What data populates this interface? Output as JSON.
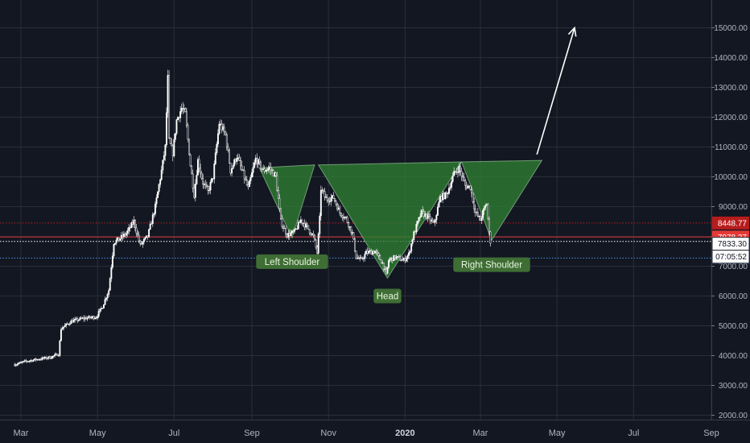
{
  "chart_data": {
    "type": "candlestick",
    "x_ticks": [
      "Mar",
      "May",
      "Jul",
      "Sep",
      "Nov",
      "2020",
      "Mar",
      "May",
      "Jul",
      "Sep"
    ],
    "y_ticks": [
      "2000.00",
      "3000.00",
      "4000.00",
      "5000.00",
      "6000.00",
      "7000.00",
      "8000.00",
      "9000.00",
      "10000.00",
      "11000.00",
      "12000.00",
      "13000.00",
      "14000.00",
      "15000.00"
    ],
    "ylim": [
      1800,
      16200
    ],
    "grid": true,
    "price_series": [
      [
        "2019-02-24",
        3700
      ],
      [
        "2019-03-05",
        3810
      ],
      [
        "2019-03-15",
        3880
      ],
      [
        "2019-03-25",
        3950
      ],
      [
        "2019-03-31",
        4050
      ],
      [
        "2019-04-02",
        4900
      ],
      [
        "2019-04-10",
        5150
      ],
      [
        "2019-04-20",
        5250
      ],
      [
        "2019-04-30",
        5300
      ],
      [
        "2019-05-05",
        5650
      ],
      [
        "2019-05-10",
        6200
      ],
      [
        "2019-05-14",
        7800
      ],
      [
        "2019-05-18",
        7900
      ],
      [
        "2019-05-24",
        8100
      ],
      [
        "2019-05-30",
        8500
      ],
      [
        "2019-06-04",
        7700
      ],
      [
        "2019-06-10",
        8000
      ],
      [
        "2019-06-16",
        9000
      ],
      [
        "2019-06-21",
        10200
      ],
      [
        "2019-06-24",
        11000
      ],
      [
        "2019-06-26",
        13300
      ],
      [
        "2019-06-27",
        11200
      ],
      [
        "2019-06-30",
        10800
      ],
      [
        "2019-07-03",
        11900
      ],
      [
        "2019-07-07",
        12300
      ],
      [
        "2019-07-10",
        12100
      ],
      [
        "2019-07-14",
        10400
      ],
      [
        "2019-07-17",
        9400
      ],
      [
        "2019-07-20",
        10550
      ],
      [
        "2019-07-24",
        9800
      ],
      [
        "2019-07-28",
        9500
      ],
      [
        "2019-08-01",
        10000
      ],
      [
        "2019-08-06",
        11800
      ],
      [
        "2019-08-11",
        11400
      ],
      [
        "2019-08-15",
        10200
      ],
      [
        "2019-08-20",
        10700
      ],
      [
        "2019-08-25",
        10100
      ],
      [
        "2019-08-29",
        9600
      ],
      [
        "2019-09-04",
        10600
      ],
      [
        "2019-09-10",
        10200
      ],
      [
        "2019-09-15",
        10300
      ],
      [
        "2019-09-20",
        10000
      ],
      [
        "2019-09-24",
        8500
      ],
      [
        "2019-09-29",
        8050
      ],
      [
        "2019-10-05",
        8150
      ],
      [
        "2019-10-10",
        8550
      ],
      [
        "2019-10-15",
        8300
      ],
      [
        "2019-10-20",
        8000
      ],
      [
        "2019-10-23",
        7450
      ],
      [
        "2019-10-25",
        8600
      ],
      [
        "2019-10-26",
        9600
      ],
      [
        "2019-10-30",
        9250
      ],
      [
        "2019-11-05",
        9300
      ],
      [
        "2019-11-10",
        8800
      ],
      [
        "2019-11-15",
        8600
      ],
      [
        "2019-11-20",
        8100
      ],
      [
        "2019-11-23",
        7300
      ],
      [
        "2019-11-27",
        7200
      ],
      [
        "2019-12-01",
        7450
      ],
      [
        "2019-12-08",
        7500
      ],
      [
        "2019-12-14",
        7100
      ],
      [
        "2019-12-17",
        6700
      ],
      [
        "2019-12-19",
        7200
      ],
      [
        "2019-12-24",
        7300
      ],
      [
        "2019-12-31",
        7200
      ],
      [
        "2020-01-04",
        7400
      ],
      [
        "2020-01-08",
        8100
      ],
      [
        "2020-01-14",
        8800
      ],
      [
        "2020-01-19",
        8650
      ],
      [
        "2020-01-24",
        8400
      ],
      [
        "2020-01-29",
        9300
      ],
      [
        "2020-02-03",
        9400
      ],
      [
        "2020-02-09",
        10100
      ],
      [
        "2020-02-13",
        10300
      ],
      [
        "2020-02-18",
        9700
      ],
      [
        "2020-02-22",
        9650
      ],
      [
        "2020-02-26",
        8800
      ],
      [
        "2020-03-01",
        8550
      ],
      [
        "2020-03-03",
        8800
      ],
      [
        "2020-03-06",
        9100
      ],
      [
        "2020-03-08",
        8100
      ],
      [
        "2020-03-09",
        7833
      ]
    ],
    "price_lines": [
      {
        "value": 8448.77,
        "label": "8448.77",
        "color": "#b71c1c",
        "style": "dotted"
      },
      {
        "value": 7978.27,
        "label": "7978.27",
        "color": "#d32f2f",
        "style": "solid"
      },
      {
        "value": 7833.3,
        "label": "7833.30",
        "color": "#ffffff",
        "style": "dotted"
      },
      {
        "value": 7273.89,
        "label": "7273.89",
        "color": "#4a90e2",
        "style": "dotted"
      }
    ],
    "countdown": "07:05:52",
    "pattern": {
      "triangles": [
        [
          [
            "2019-09-07",
            10300
          ],
          [
            "2019-10-21",
            10400
          ],
          [
            "2019-10-03",
            7950
          ]
        ],
        [
          [
            "2019-10-24",
            10400
          ],
          [
            "2020-02-15",
            10500
          ],
          [
            "2019-12-18",
            6600
          ]
        ],
        [
          [
            "2020-02-15",
            10500
          ],
          [
            "2020-04-19",
            10550
          ],
          [
            "2020-03-10",
            7870
          ]
        ]
      ],
      "labels": [
        {
          "text": "Left Shoulder",
          "date": "2019-10-03",
          "price": 7150
        },
        {
          "text": "Head",
          "date": "2019-12-18",
          "price": 6000
        },
        {
          "text": "Right Shoulder",
          "date": "2020-03-10",
          "price": 7050
        }
      ],
      "arrow": {
        "from": [
          "2020-04-15",
          10750
        ],
        "to": [
          "2020-05-15",
          15000
        ]
      }
    },
    "colors": {
      "background": "#131722",
      "candles": "#ffffff",
      "pattern_fill": "#2e7d32",
      "pattern_stroke": "#a5d6a7",
      "label_bg": "#3f6e34",
      "grid": "#2a2e39"
    }
  }
}
